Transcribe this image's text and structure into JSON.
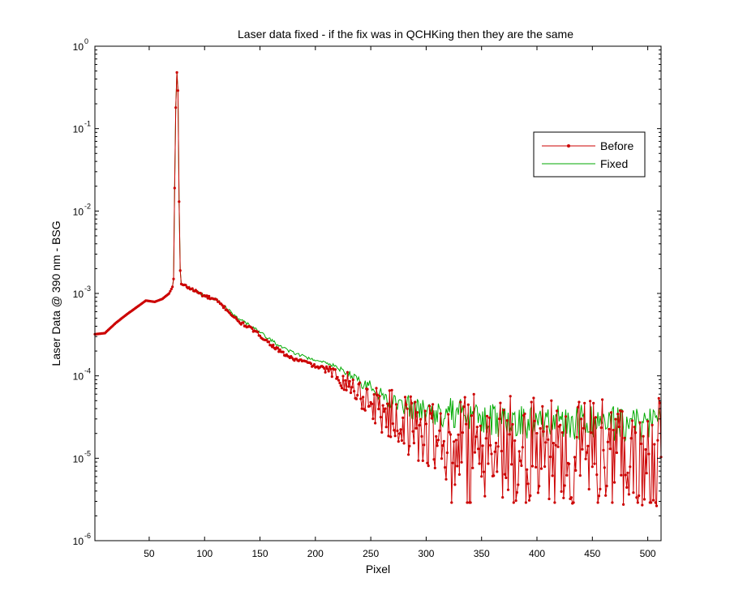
{
  "chart_data": {
    "type": "line",
    "title": "Laser data fixed - if the fix was in QCHKing then they are the same",
    "xlabel": "Pixel",
    "ylabel": "Laser Data @ 390 nm - BSG",
    "xlim": [
      1,
      512
    ],
    "ylim": [
      1e-06,
      1
    ],
    "yscale": "log",
    "grid": false,
    "legend_position": "upper-right",
    "x_ticks": [
      50,
      100,
      150,
      200,
      250,
      300,
      350,
      400,
      450,
      500
    ],
    "y_ticks": [
      {
        "value": 1e-06,
        "base": "10",
        "exp": "-6"
      },
      {
        "value": 1e-05,
        "base": "10",
        "exp": "-5"
      },
      {
        "value": 0.0001,
        "base": "10",
        "exp": "-4"
      },
      {
        "value": 0.001,
        "base": "10",
        "exp": "-3"
      },
      {
        "value": 0.01,
        "base": "10",
        "exp": "-2"
      },
      {
        "value": 0.1,
        "base": "10",
        "exp": "-1"
      },
      {
        "value": 1,
        "base": "10",
        "exp": "0"
      }
    ],
    "series": [
      {
        "name": "Before",
        "color": "#cc0000",
        "marker": "dot",
        "profile": [
          [
            1,
            0.00032
          ],
          [
            10,
            0.00033
          ],
          [
            20,
            0.00044
          ],
          [
            30,
            0.00056
          ],
          [
            40,
            0.0007
          ],
          [
            47,
            0.00082
          ],
          [
            55,
            0.00079
          ],
          [
            62,
            0.00086
          ],
          [
            68,
            0.001
          ],
          [
            71,
            0.0012
          ],
          [
            72,
            0.0015
          ],
          [
            73,
            0.019
          ],
          [
            74,
            0.18
          ],
          [
            75,
            0.48
          ],
          [
            76,
            0.29
          ],
          [
            77,
            0.013
          ],
          [
            78,
            0.0019
          ],
          [
            79,
            0.0013
          ],
          [
            90,
            0.0011
          ],
          [
            100,
            0.00093
          ],
          [
            110,
            0.00083
          ],
          [
            120,
            0.00064
          ],
          [
            130,
            0.00046
          ],
          [
            140,
            0.00039
          ],
          [
            150,
            0.00031
          ],
          [
            160,
            0.00024
          ],
          [
            170,
            0.00019
          ],
          [
            180,
            0.00016
          ],
          [
            190,
            0.00015
          ],
          [
            200,
            0.00013
          ],
          [
            210,
            0.00012
          ],
          [
            220,
            0.0001
          ],
          [
            230,
            8e-05
          ],
          [
            240,
            6.2e-05
          ],
          [
            250,
            4.8e-05
          ],
          [
            260,
            3.8e-05
          ],
          [
            270,
            3.2e-05
          ],
          [
            280,
            2.7e-05
          ],
          [
            300,
            2e-05
          ],
          [
            330,
            1.6e-05
          ],
          [
            360,
            1.4e-05
          ],
          [
            400,
            1.3e-05
          ],
          [
            450,
            1.25e-05
          ],
          [
            512,
            1.2e-05
          ]
        ]
      },
      {
        "name": "Fixed",
        "color": "#00aa00",
        "marker": "none",
        "profile": [
          [
            1,
            0.00032
          ],
          [
            10,
            0.00033
          ],
          [
            20,
            0.00044
          ],
          [
            30,
            0.00056
          ],
          [
            40,
            0.0007
          ],
          [
            47,
            0.00082
          ],
          [
            55,
            0.00079
          ],
          [
            62,
            0.00086
          ],
          [
            68,
            0.001
          ],
          [
            71,
            0.0012
          ],
          [
            72,
            0.0015
          ],
          [
            73,
            0.019
          ],
          [
            74,
            0.18
          ],
          [
            75,
            0.48
          ],
          [
            76,
            0.29
          ],
          [
            77,
            0.013
          ],
          [
            78,
            0.0019
          ],
          [
            79,
            0.0013
          ],
          [
            90,
            0.0011
          ],
          [
            100,
            0.00093
          ],
          [
            110,
            0.00085
          ],
          [
            120,
            0.00066
          ],
          [
            130,
            0.0005
          ],
          [
            140,
            0.00042
          ],
          [
            150,
            0.00034
          ],
          [
            160,
            0.00027
          ],
          [
            170,
            0.00022
          ],
          [
            180,
            0.00019
          ],
          [
            190,
            0.00017
          ],
          [
            200,
            0.000155
          ],
          [
            210,
            0.000145
          ],
          [
            220,
            0.000125
          ],
          [
            230,
            0.000105
          ],
          [
            240,
            8.5e-05
          ],
          [
            250,
            7.2e-05
          ],
          [
            260,
            5.8e-05
          ],
          [
            270,
            5e-05
          ],
          [
            280,
            4.4e-05
          ],
          [
            300,
            3.8e-05
          ],
          [
            330,
            3.3e-05
          ],
          [
            360,
            3e-05
          ],
          [
            400,
            2.8e-05
          ],
          [
            450,
            2.7e-05
          ],
          [
            512,
            2.6e-05
          ]
        ]
      }
    ]
  }
}
